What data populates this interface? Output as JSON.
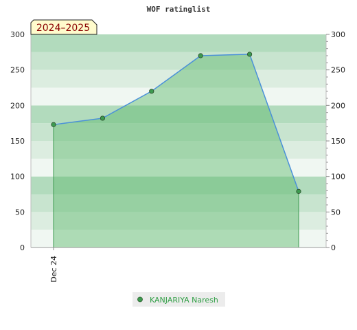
{
  "chart_data": {
    "type": "area",
    "title": "WOF ratinglist",
    "season_label": "2024–2025",
    "x_tick_labels": [
      "Dec 24"
    ],
    "y_ticks": [
      0,
      50,
      100,
      150,
      200,
      250,
      300
    ],
    "ylim": [
      0,
      300
    ],
    "grid": true,
    "legend_position": "bottom-center",
    "series": [
      {
        "name": "KANJARIYA Naresh",
        "values": [
          173,
          182,
          220,
          270,
          272,
          79
        ],
        "color": "#4a90d9",
        "fill": "#5cb86a"
      }
    ]
  }
}
